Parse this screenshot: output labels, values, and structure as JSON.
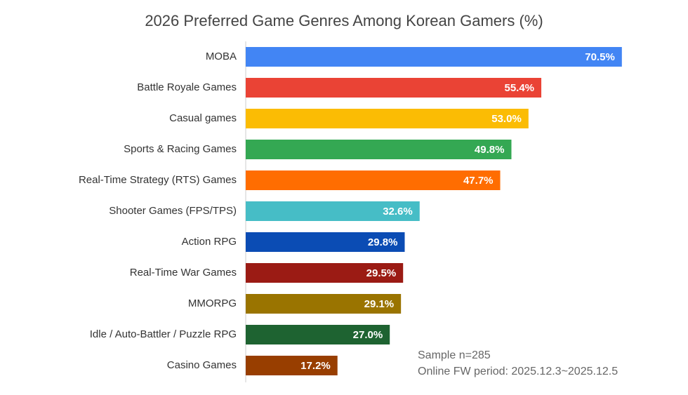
{
  "chart_data": {
    "type": "barh",
    "title": "2026 Preferred Game Genres Among Korean Gamers (%)",
    "categories": [
      "MOBA",
      "Battle Royale Games",
      "Casual games",
      "Sports & Racing Games",
      "Real-Time Strategy (RTS) Games",
      "Shooter Games (FPS/TPS)",
      "Action RPG",
      "Real-Time War Games",
      "MMORPG",
      "Idle / Auto-Battler / Puzzle RPG",
      "Casino Games"
    ],
    "values": [
      70.5,
      55.4,
      53.0,
      49.8,
      47.7,
      32.6,
      29.8,
      29.5,
      29.1,
      27.0,
      17.2
    ],
    "value_labels": [
      "70.5%",
      "55.4%",
      "53.0%",
      "49.8%",
      "47.7%",
      "32.6%",
      "29.8%",
      "29.5%",
      "29.1%",
      "27.0%",
      "17.2%"
    ],
    "colors": [
      "#4285f4",
      "#ea4335",
      "#fbbc04",
      "#34a853",
      "#ff6d01",
      "#46bdc6",
      "#0b4cb4",
      "#9b1b14",
      "#9a7400",
      "#1e6331",
      "#983e00"
    ],
    "xlim": [
      0,
      80
    ],
    "annotations": [
      "Sample n=285",
      "Online FW period: 2025.12.3~2025.12.5"
    ]
  }
}
